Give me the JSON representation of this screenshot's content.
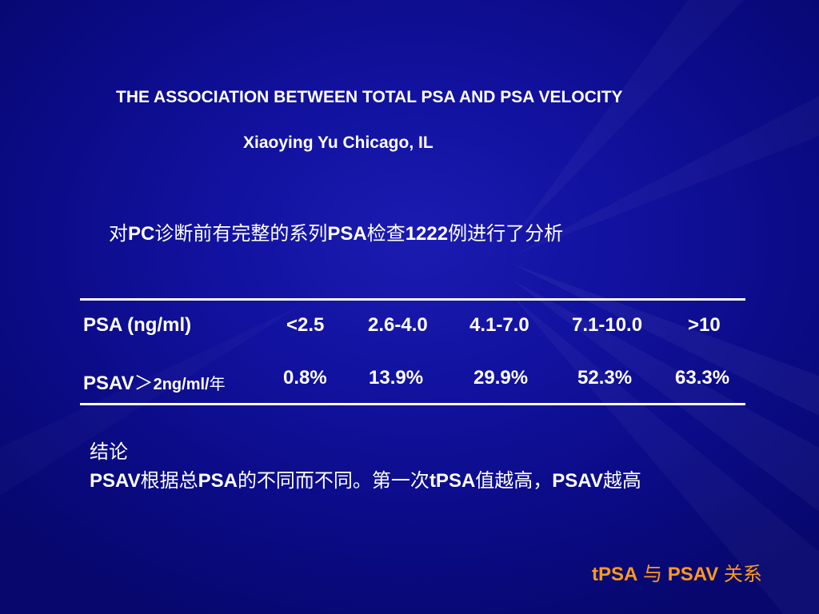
{
  "slide": {
    "title": "THE ASSOCIATION BETWEEN TOTAL PSA AND PSA VELOCITY",
    "author": "Xiaoying Yu  Chicago, IL",
    "intro": {
      "p1": "对",
      "p2": "PC",
      "p3": "诊断前有完整的系列",
      "p4": "PSA",
      "p5": "检查",
      "p6": "1222",
      "p7": "例进行了分析"
    },
    "table": {
      "row1": {
        "label": "PSA (ng/ml)",
        "values": [
          "<2.5",
          "2.6-4.0",
          "4.1-7.0",
          "7.1-10.0",
          ">10"
        ]
      },
      "row2": {
        "label_main": "PSAV",
        "label_gt": "＞",
        "label_unit": "2ng/ml/",
        "label_year": "年",
        "values": [
          "0.8%",
          "13.9%",
          "29.9%",
          "52.3%",
          "63.3%"
        ]
      }
    },
    "conclusion": {
      "heading": "结论",
      "b1": "PSAV",
      "b2": "根据总",
      "b3": "PSA",
      "b4": "的不同而不同。第一次",
      "b5": "tPSA",
      "b6": "值越高，",
      "b7": "PSAV",
      "b8": "越高"
    },
    "footer": {
      "f1": "tPSA",
      "f2": " 与 ",
      "f3": "PSAV",
      "f4": " 关系"
    },
    "colors": {
      "background": "#0c0c8a",
      "text": "#ffffff",
      "footer": "#ff9a1a"
    }
  }
}
